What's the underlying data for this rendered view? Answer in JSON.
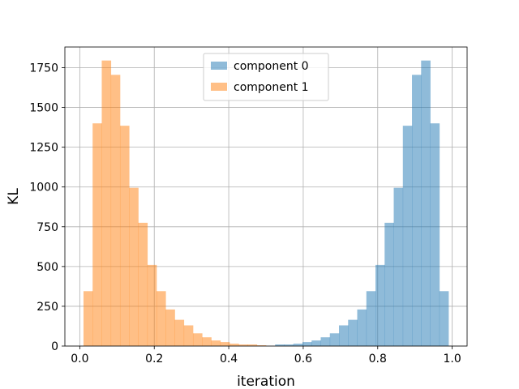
{
  "chart_data": {
    "type": "bar",
    "title": "",
    "xlabel": "iteration",
    "ylabel": "KL",
    "xlim": [
      -0.04,
      1.04
    ],
    "ylim": [
      0,
      1880
    ],
    "xticks": [
      {
        "value": 0.0,
        "label": "0.0"
      },
      {
        "value": 0.2,
        "label": "0.2"
      },
      {
        "value": 0.4,
        "label": "0.4"
      },
      {
        "value": 0.6,
        "label": "0.6"
      },
      {
        "value": 0.8,
        "label": "0.8"
      },
      {
        "value": 1.0,
        "label": "1.0"
      }
    ],
    "yticks": [
      {
        "value": 0,
        "label": "0"
      },
      {
        "value": 250,
        "label": "250"
      },
      {
        "value": 500,
        "label": "500"
      },
      {
        "value": 750,
        "label": "750"
      },
      {
        "value": 1000,
        "label": "1000"
      },
      {
        "value": 1250,
        "label": "1250"
      },
      {
        "value": 1500,
        "label": "1500"
      },
      {
        "value": 1750,
        "label": "1750"
      }
    ],
    "grid": true,
    "legend": "top-center",
    "bin_edges": [
      0.01,
      0.0345,
      0.059,
      0.0835,
      0.108,
      0.1325,
      0.157,
      0.1815,
      0.206,
      0.2305,
      0.255,
      0.2795,
      0.304,
      0.3285,
      0.353,
      0.3775,
      0.402,
      0.4265,
      0.451,
      0.4755,
      0.5,
      0.5245,
      0.549,
      0.5735,
      0.598,
      0.6225,
      0.647,
      0.6715,
      0.696,
      0.7205,
      0.745,
      0.7695,
      0.794,
      0.8185,
      0.843,
      0.8675,
      0.892,
      0.9165,
      0.941,
      0.9655,
      0.99
    ],
    "series": [
      {
        "name": "component 0",
        "color": "#1f77b4",
        "opacity": 0.5,
        "values": [
          0,
          0,
          0,
          0,
          0,
          0,
          0,
          0,
          0,
          0,
          0,
          0,
          0,
          0,
          0,
          0,
          0,
          0,
          0,
          0,
          0,
          10,
          10,
          15,
          25,
          35,
          55,
          80,
          130,
          165,
          230,
          345,
          510,
          775,
          995,
          1385,
          1705,
          1795,
          1400,
          345
        ]
      },
      {
        "name": "component 1",
        "color": "#ff7f0e",
        "opacity": 0.5,
        "values": [
          345,
          1400,
          1795,
          1705,
          1385,
          995,
          775,
          510,
          345,
          230,
          165,
          130,
          80,
          55,
          35,
          25,
          15,
          10,
          10,
          5,
          0,
          0,
          0,
          0,
          0,
          0,
          0,
          0,
          0,
          0,
          0,
          0,
          0,
          0,
          0,
          0,
          0,
          0,
          0,
          0
        ]
      }
    ]
  }
}
